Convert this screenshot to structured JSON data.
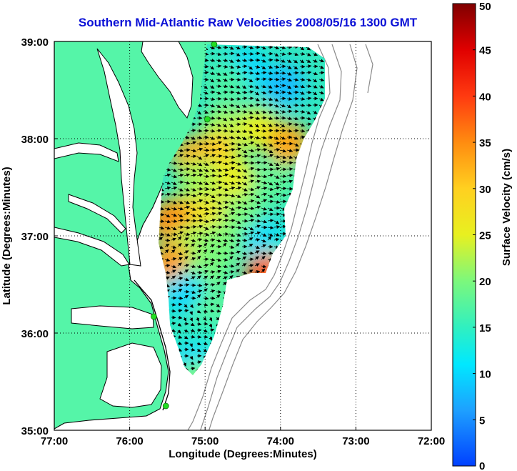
{
  "title": "Southern Mid-Atlantic Raw Velocities 2008/05/16 1300 GMT",
  "chart_data": {
    "type": "heatmap",
    "xlabel": "Longitude (Degrees:Minutes)",
    "ylabel": "Latitude (Degrees:Minutes)",
    "xlim": [
      -77,
      -72
    ],
    "ylim": [
      35,
      39
    ],
    "x_ticks": [
      {
        "value": -77,
        "label": "77:00"
      },
      {
        "value": -76,
        "label": "76:00"
      },
      {
        "value": -75,
        "label": "75:00"
      },
      {
        "value": -74,
        "label": "74:00"
      },
      {
        "value": -73,
        "label": "73:00"
      },
      {
        "value": -72,
        "label": "72:00"
      }
    ],
    "y_ticks": [
      {
        "value": 35,
        "label": "35:00"
      },
      {
        "value": 36,
        "label": "36:00"
      },
      {
        "value": 37,
        "label": "37:00"
      },
      {
        "value": 38,
        "label": "38:00"
      },
      {
        "value": 39,
        "label": "39:00"
      }
    ],
    "grid": true,
    "colorbar": {
      "label": "Surface Velocity (cm/s)",
      "range": [
        0,
        50
      ],
      "ticks": [
        0,
        5,
        10,
        15,
        20,
        25,
        30,
        35,
        40,
        45,
        50
      ],
      "placement": "right"
    },
    "colors": {
      "land": "#55f5a8",
      "water": "#ffffff",
      "coastline": "#000000",
      "bathymetry": "#8a8a8a",
      "station": "#22dd22",
      "title": "#0a10d6"
    },
    "stations": [
      {
        "lon": -74.88,
        "lat": 38.97
      },
      {
        "lon": -74.97,
        "lat": 38.2
      },
      {
        "lon": -75.68,
        "lat": 36.17
      },
      {
        "lon": -75.52,
        "lat": 35.25
      }
    ],
    "velocity_zones": [
      {
        "lon": -74.45,
        "lat": 38.72,
        "speed": 10
      },
      {
        "lon": -73.95,
        "lat": 38.55,
        "speed": 8
      },
      {
        "lon": -74.7,
        "lat": 38.55,
        "speed": 17
      },
      {
        "lon": -74.75,
        "lat": 38.1,
        "speed": 22
      },
      {
        "lon": -74.3,
        "lat": 38.1,
        "speed": 25
      },
      {
        "lon": -73.9,
        "lat": 37.95,
        "speed": 33
      },
      {
        "lon": -74.85,
        "lat": 37.85,
        "speed": 30
      },
      {
        "lon": -75.15,
        "lat": 37.8,
        "speed": 33
      },
      {
        "lon": -75.05,
        "lat": 37.6,
        "speed": 22
      },
      {
        "lon": -74.6,
        "lat": 37.6,
        "speed": 25
      },
      {
        "lon": -74.1,
        "lat": 37.55,
        "speed": 18
      },
      {
        "lon": -75.3,
        "lat": 37.2,
        "speed": 28
      },
      {
        "lon": -74.9,
        "lat": 37.2,
        "speed": 27
      },
      {
        "lon": -74.5,
        "lat": 37.2,
        "speed": 20
      },
      {
        "lon": -75.45,
        "lat": 37.15,
        "speed": 35
      },
      {
        "lon": -75.2,
        "lat": 36.9,
        "speed": 22
      },
      {
        "lon": -74.8,
        "lat": 36.9,
        "speed": 20
      },
      {
        "lon": -74.2,
        "lat": 36.95,
        "speed": 10
      },
      {
        "lon": -74.0,
        "lat": 36.75,
        "speed": 14
      },
      {
        "lon": -74.2,
        "lat": 36.6,
        "speed": 38
      },
      {
        "lon": -75.45,
        "lat": 36.7,
        "speed": 34
      },
      {
        "lon": -75.0,
        "lat": 36.6,
        "speed": 20
      },
      {
        "lon": -75.25,
        "lat": 36.4,
        "speed": 10
      },
      {
        "lon": -74.9,
        "lat": 36.2,
        "speed": 18
      },
      {
        "lon": -74.95,
        "lat": 35.95,
        "speed": 15
      },
      {
        "lon": -75.15,
        "lat": 35.7,
        "speed": 10
      },
      {
        "lon": -75.1,
        "lat": 35.5,
        "speed": 20
      }
    ]
  }
}
